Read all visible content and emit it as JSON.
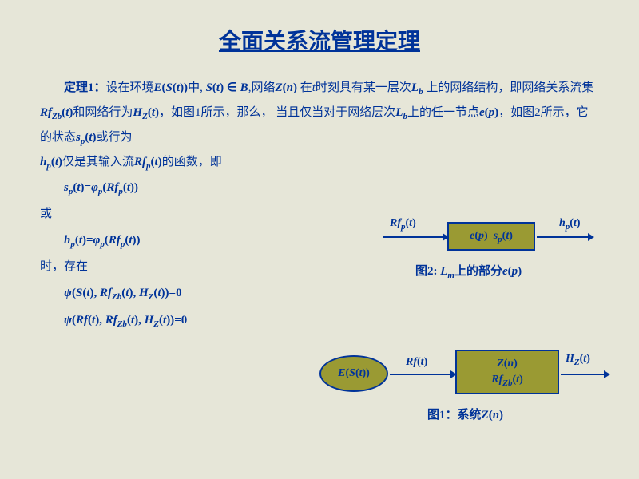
{
  "title": "全面关系流管理定理",
  "theorem_label": "定理1：",
  "para_parts": {
    "p1a": "设在环境",
    "p1b": "中, ",
    "p1c": ",网络",
    "p1d": " 在",
    "p1e": "时刻具有某一层次",
    "p2a": "上的网络结构，即网络关系流集",
    "p2b": "和网络行为",
    "p2c": "，如图1所示，那么，",
    "p3a": "当且仅当对于网络层次",
    "p3b": "上的任一节点",
    "p3c": "，如图2所示，它的状态",
    "p3d": "或行为",
    "p4a": "仅是其输入流",
    "p4b": "的函数，即"
  },
  "syms": {
    "E": "E",
    "S": "S",
    "t": "t",
    "B": "B",
    "Z": "Z",
    "n": "n",
    "L": "L",
    "b": "b",
    "Rf": "Rf",
    "Zb": "Zb",
    "H": "H",
    "e": "e",
    "p": "p",
    "s": "s",
    "h": "h",
    "phi": "φ",
    "psi": "ψ",
    "m": "m",
    "in": "∈",
    "eq": "=",
    "zero": "0"
  },
  "lines": {
    "or": "或",
    "when": "时，存在"
  },
  "fig2": {
    "left_label_pre": "Rf",
    "box_e": "e",
    "box_s": "s",
    "right_h": "h",
    "caption_pre": "图2: ",
    "caption_post": "上的部分"
  },
  "fig1": {
    "ellipse_E": "E",
    "mid_Rf": "Rf",
    "box_Z": "Z",
    "box_Rf": "Rf",
    "right_H": "H",
    "caption_pre": "图1：系统"
  },
  "colors": {
    "background": "#e6e6d8",
    "text": "#003399",
    "box_fill": "#9a9a33",
    "box_border": "#003399"
  }
}
